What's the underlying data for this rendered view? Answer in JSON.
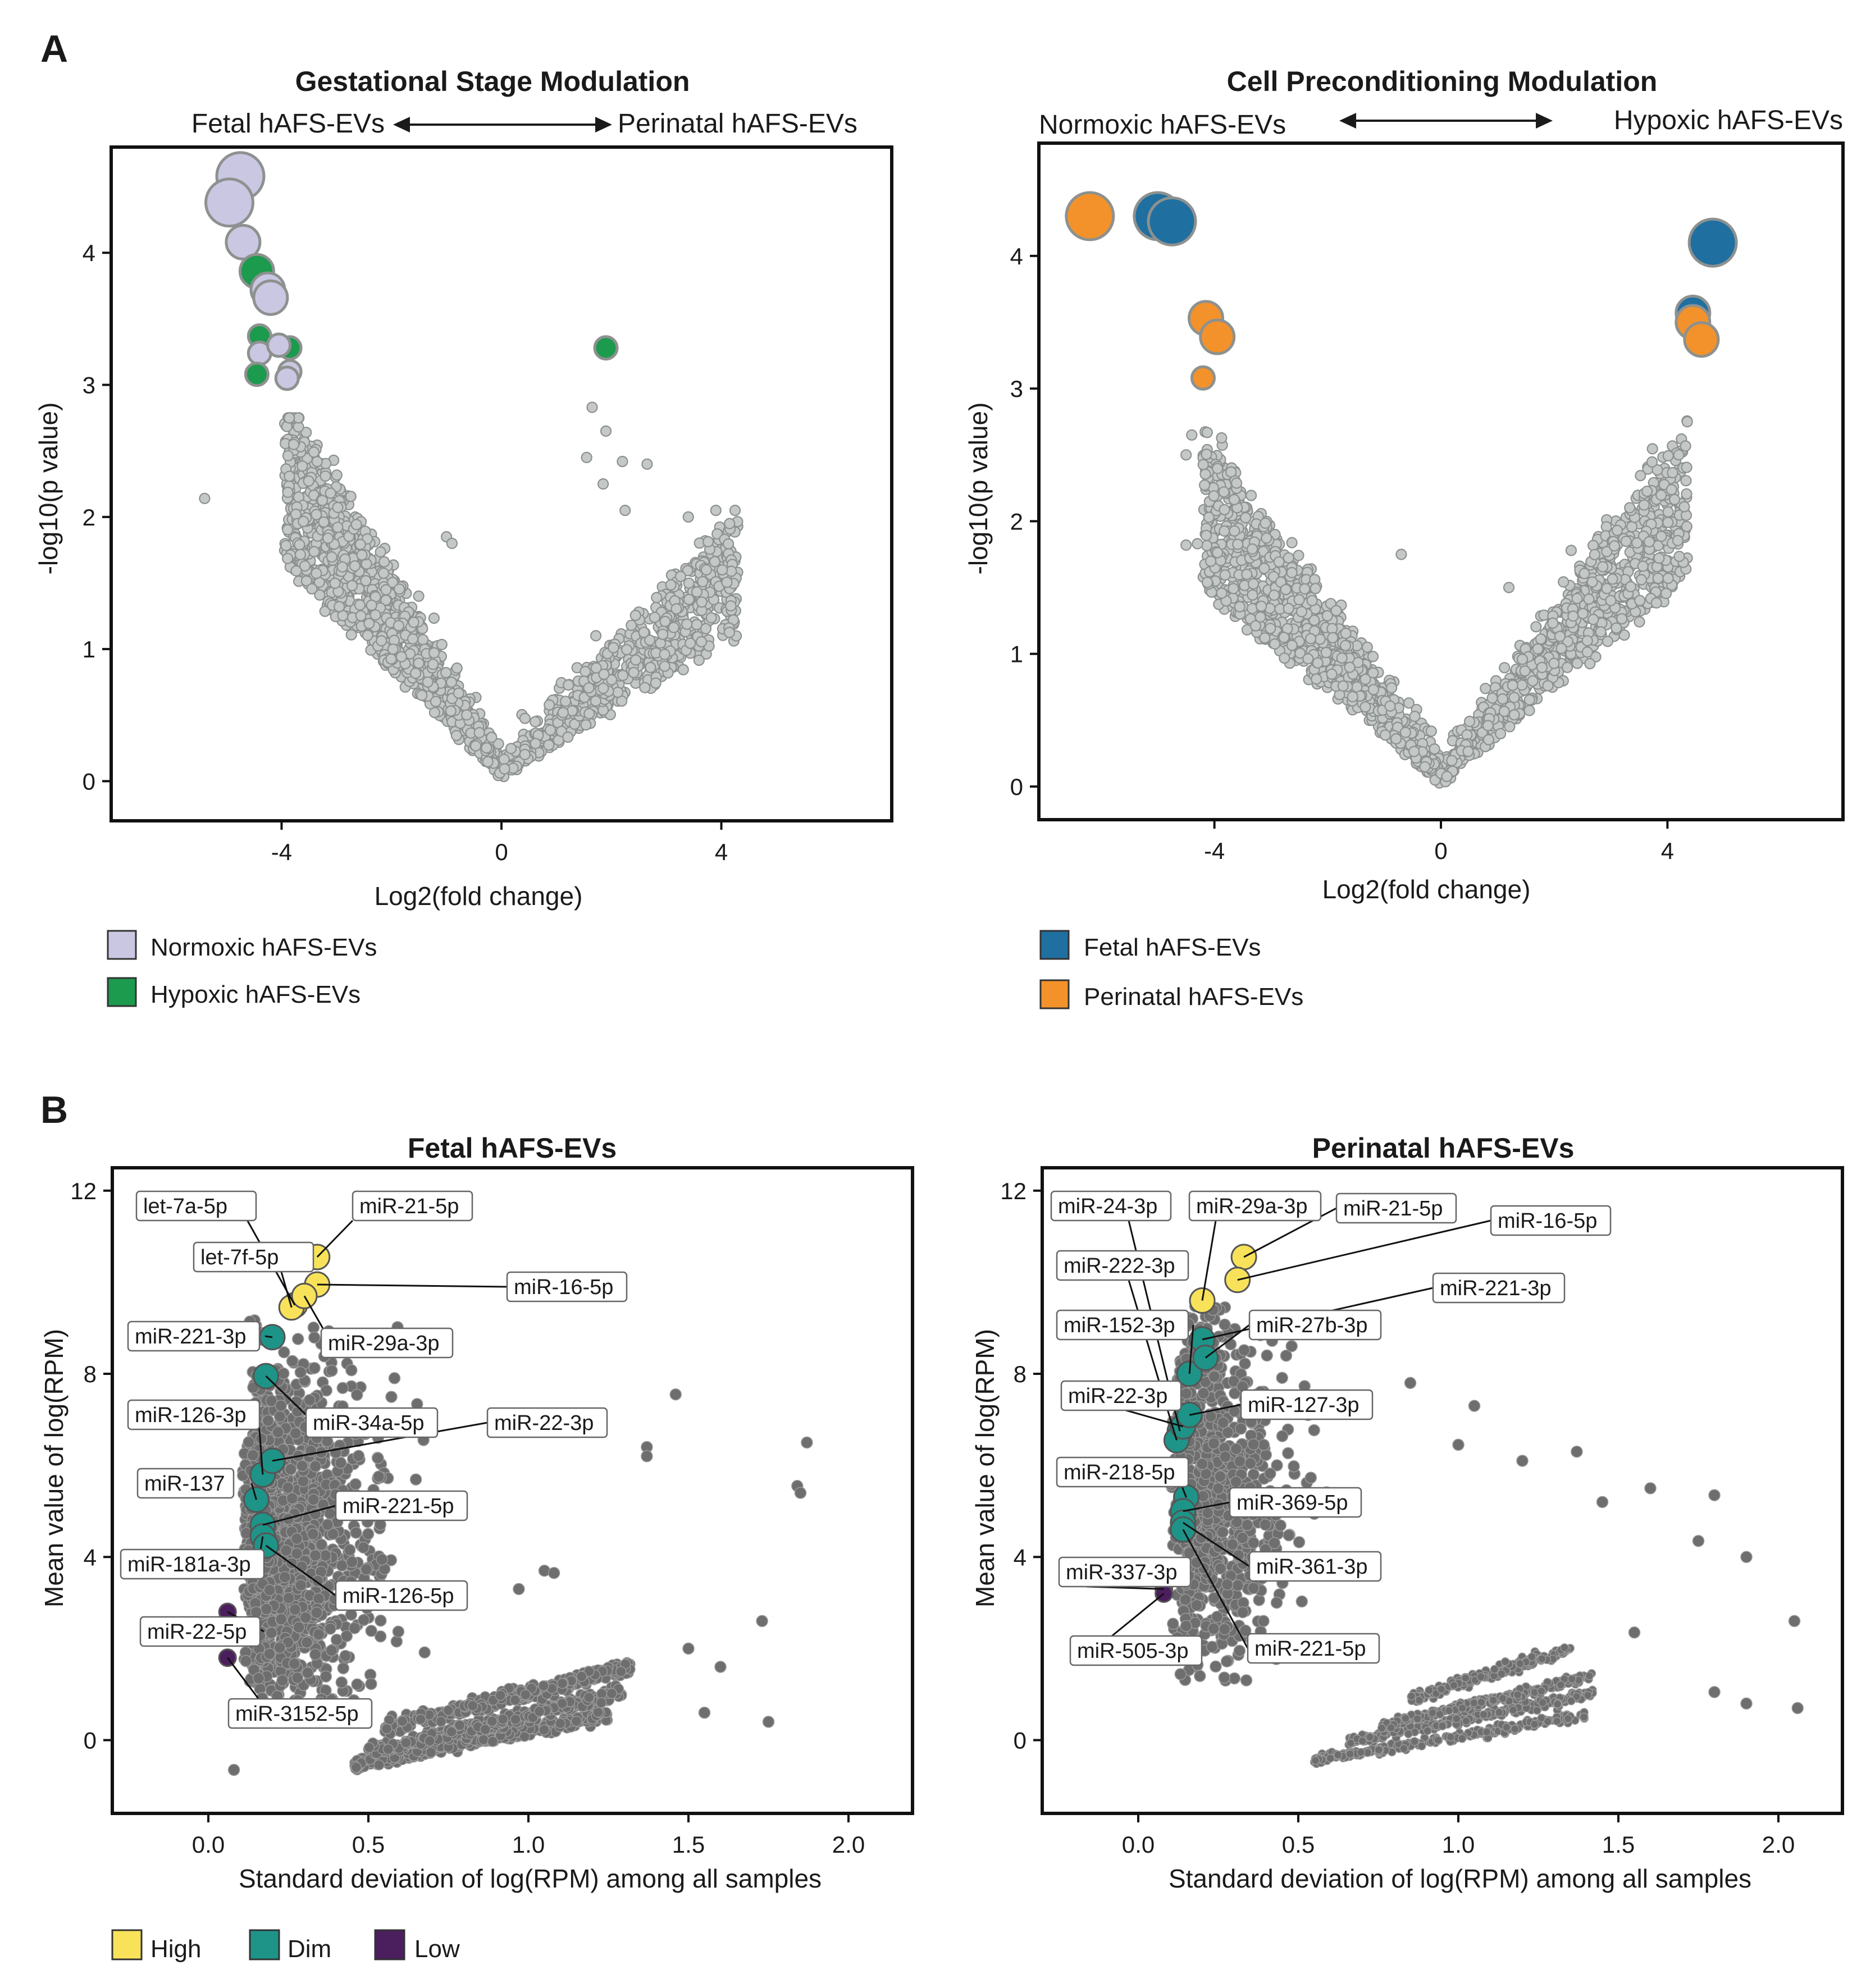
{
  "panel_letters": {
    "a": "A",
    "b": "B"
  },
  "colors": {
    "gray_bg": "#c4c8c6",
    "gray_stroke": "#8d918f",
    "gray_b": "#6e6e6e",
    "normoxic": "#c9c7e2",
    "hypoxic": "#1c9a4d",
    "fetal": "#1f6fa1",
    "perinatal": "#f3922b",
    "high": "#f8e25a",
    "dim": "#1e9488",
    "low": "#4b1e5e"
  },
  "legends": {
    "a1": [
      {
        "label": "Normoxic hAFS-EVs",
        "color": "#c9c7e2"
      },
      {
        "label": "Hypoxic hAFS-EVs",
        "color": "#1c9a4d"
      }
    ],
    "a2": [
      {
        "label": "Fetal hAFS-EVs",
        "color": "#1f6fa1"
      },
      {
        "label": "Perinatal hAFS-EVs",
        "color": "#f3922b"
      }
    ],
    "b": [
      {
        "label": "High",
        "color": "#f8e25a"
      },
      {
        "label": "Dim",
        "color": "#1e9488"
      },
      {
        "label": "Low",
        "color": "#4b1e5e"
      }
    ]
  },
  "chart_data": [
    {
      "id": "a1",
      "type": "scatter",
      "subtype": "volcano",
      "title": "Gestational Stage Modulation",
      "left_label": "Fetal hAFS-EVs",
      "right_label": "Perinatal hAFS-EVs",
      "xlabel": "Log2(fold change)",
      "ylabel": "-log10(p value)",
      "xlim": [
        -7.1,
        7.1
      ],
      "ylim": [
        -0.3,
        4.8
      ],
      "xticks": [
        -4,
        0,
        4
      ],
      "yticks": [
        0,
        1,
        2,
        3,
        4
      ],
      "background_points": {
        "color": "gray",
        "approx_count": 2000,
        "pattern": "volcano V-shape; left arm reaches p~2.8 at log2FC -3.9, right arm reaches p~2.1 at log2FC 4.3"
      },
      "highlighted": [
        {
          "x": -4.75,
          "y": 4.58,
          "group": "Normoxic hAFS-EVs",
          "size": "large"
        },
        {
          "x": -4.95,
          "y": 4.38,
          "group": "Normoxic hAFS-EVs",
          "size": "large"
        },
        {
          "x": -4.7,
          "y": 4.08,
          "group": "Normoxic hAFS-EVs",
          "size": "medium"
        },
        {
          "x": -4.45,
          "y": 3.86,
          "group": "Hypoxic hAFS-EVs",
          "size": "medium"
        },
        {
          "x": -4.25,
          "y": 3.72,
          "group": "Normoxic hAFS-EVs",
          "size": "medium"
        },
        {
          "x": -4.2,
          "y": 3.66,
          "group": "Normoxic hAFS-EVs",
          "size": "medium"
        },
        {
          "x": -4.4,
          "y": 3.37,
          "group": "Hypoxic hAFS-EVs",
          "size": "small"
        },
        {
          "x": -3.85,
          "y": 3.28,
          "group": "Hypoxic hAFS-EVs",
          "size": "small"
        },
        {
          "x": -4.4,
          "y": 3.24,
          "group": "Normoxic hAFS-EVs",
          "size": "small"
        },
        {
          "x": -4.05,
          "y": 3.3,
          "group": "Normoxic hAFS-EVs",
          "size": "small"
        },
        {
          "x": -4.45,
          "y": 3.08,
          "group": "Hypoxic hAFS-EVs",
          "size": "small"
        },
        {
          "x": -3.85,
          "y": 3.1,
          "group": "Normoxic hAFS-EVs",
          "size": "small"
        },
        {
          "x": -3.9,
          "y": 3.05,
          "group": "Normoxic hAFS-EVs",
          "size": "small"
        },
        {
          "x": 1.9,
          "y": 3.28,
          "group": "Hypoxic hAFS-EVs",
          "size": "small"
        }
      ]
    },
    {
      "id": "a2",
      "type": "scatter",
      "subtype": "volcano",
      "title": "Cell Preconditioning Modulation",
      "left_label": "Normoxic hAFS-EVs",
      "right_label": "Hypoxic hAFS-EVs",
      "xlabel": "Log2(fold change)",
      "ylabel": "-log10(p value)",
      "xlim": [
        -7.1,
        7.1
      ],
      "ylim": [
        -0.25,
        4.85
      ],
      "xticks": [
        -4,
        0,
        4
      ],
      "yticks": [
        0,
        1,
        2,
        3,
        4
      ],
      "background_points": {
        "color": "gray",
        "approx_count": 2000,
        "pattern": "volcano V-shape; left arm reaches p~2.8 at log2FC -4.2, right arm reaches p~2.9 at log2FC 4.3"
      },
      "highlighted": [
        {
          "x": -6.2,
          "y": 4.3,
          "group": "Perinatal hAFS-EVs",
          "size": "large"
        },
        {
          "x": -5.0,
          "y": 4.3,
          "group": "Fetal hAFS-EVs",
          "size": "large"
        },
        {
          "x": -4.75,
          "y": 4.26,
          "group": "Fetal hAFS-EVs",
          "size": "large"
        },
        {
          "x": -4.15,
          "y": 3.53,
          "group": "Perinatal hAFS-EVs",
          "size": "medium"
        },
        {
          "x": -3.95,
          "y": 3.39,
          "group": "Perinatal hAFS-EVs",
          "size": "medium"
        },
        {
          "x": -4.2,
          "y": 3.08,
          "group": "Perinatal hAFS-EVs",
          "size": "small"
        },
        {
          "x": 4.8,
          "y": 4.1,
          "group": "Fetal hAFS-EVs",
          "size": "large"
        },
        {
          "x": 4.45,
          "y": 3.57,
          "group": "Fetal hAFS-EVs",
          "size": "medium"
        },
        {
          "x": 4.45,
          "y": 3.5,
          "group": "Perinatal hAFS-EVs",
          "size": "medium"
        },
        {
          "x": 4.6,
          "y": 3.37,
          "group": "Perinatal hAFS-EVs",
          "size": "medium"
        }
      ]
    },
    {
      "id": "b1",
      "type": "scatter",
      "title": "Fetal hAFS-EVs",
      "xlabel": "Standard deviation of log(RPM) among all samples",
      "ylabel": "Mean value of log(RPM)",
      "xlim": [
        -0.3,
        2.2
      ],
      "ylim": [
        -1.6,
        12.5
      ],
      "xticks": [
        "0.0",
        "0.5",
        "1.0",
        "1.5",
        "2.0"
      ],
      "yticks": [
        0,
        4,
        8,
        12
      ],
      "background_points": {
        "color": "gray",
        "pattern": "dense cloud at SD 0.1-0.6, mean 1-9; three diagonal bands from (0.45, -0.5) to (1.3, 1.6); scattered outliers up to SD 1.87"
      },
      "labeled_points": [
        {
          "label": "let-7a-5p",
          "x": 0.27,
          "y": 9.5,
          "class": "High"
        },
        {
          "label": "let-7f-5p",
          "x": 0.26,
          "y": 9.45,
          "class": "High"
        },
        {
          "label": "miR-21-5p",
          "x": 0.34,
          "y": 10.55,
          "class": "High"
        },
        {
          "label": "miR-16-5p",
          "x": 0.34,
          "y": 9.95,
          "class": "High"
        },
        {
          "label": "miR-29a-3p",
          "x": 0.3,
          "y": 9.7,
          "class": "High"
        },
        {
          "label": "miR-221-3p",
          "x": 0.2,
          "y": 8.8,
          "class": "Dim"
        },
        {
          "label": "miR-34a-5p",
          "x": 0.18,
          "y": 7.95,
          "class": "Dim"
        },
        {
          "label": "miR-126-3p",
          "x": 0.17,
          "y": 5.8,
          "class": "Dim"
        },
        {
          "label": "miR-22-3p",
          "x": 0.2,
          "y": 6.1,
          "class": "Dim"
        },
        {
          "label": "miR-137",
          "x": 0.15,
          "y": 5.25,
          "class": "Dim"
        },
        {
          "label": "miR-221-5p",
          "x": 0.17,
          "y": 4.7,
          "class": "Dim"
        },
        {
          "label": "miR-181a-3p",
          "x": 0.17,
          "y": 4.45,
          "class": "Dim"
        },
        {
          "label": "miR-126-5p",
          "x": 0.18,
          "y": 4.25,
          "class": "Dim"
        },
        {
          "label": "miR-22-5p",
          "x": 0.06,
          "y": 2.8,
          "class": "Low"
        },
        {
          "label": "miR-3152-5p",
          "x": 0.06,
          "y": 1.8,
          "class": "Low"
        }
      ]
    },
    {
      "id": "b2",
      "type": "scatter",
      "title": "Perinatal hAFS-EVs",
      "xlabel": "Standard deviation of log(RPM) among all samples",
      "ylabel": "Mean value of log(RPM)",
      "xlim": [
        -0.3,
        2.2
      ],
      "ylim": [
        -1.6,
        12.5
      ],
      "xticks": [
        "0.0",
        "0.5",
        "1.0",
        "1.5",
        "2.0"
      ],
      "yticks": [
        0,
        4,
        8,
        12
      ],
      "background_points": {
        "color": "gray",
        "pattern": "dense cloud at SD 0.1-0.55, mean 1.5-9.5; four diagonal bands from (0.55, -0.4) to (1.4, 2.0); scattered outliers up to SD 2.05"
      },
      "labeled_points": [
        {
          "label": "miR-24-3p",
          "x": 0.13,
          "y": 6.75,
          "class": "Dim"
        },
        {
          "label": "miR-29a-3p",
          "x": 0.2,
          "y": 9.6,
          "class": "High"
        },
        {
          "label": "miR-21-5p",
          "x": 0.33,
          "y": 10.55,
          "class": "High"
        },
        {
          "label": "miR-16-5p",
          "x": 0.31,
          "y": 10.05,
          "class": "High"
        },
        {
          "label": "miR-222-3p",
          "x": 0.12,
          "y": 6.55,
          "class": "Dim"
        },
        {
          "label": "miR-221-3p",
          "x": 0.2,
          "y": 8.75,
          "class": "Dim"
        },
        {
          "label": "miR-152-3p",
          "x": 0.16,
          "y": 8.0,
          "class": "Dim"
        },
        {
          "label": "miR-27b-3p",
          "x": 0.21,
          "y": 8.35,
          "class": "Dim"
        },
        {
          "label": "miR-22-3p",
          "x": 0.14,
          "y": 6.85,
          "class": "Dim"
        },
        {
          "label": "miR-127-3p",
          "x": 0.16,
          "y": 7.1,
          "class": "Dim"
        },
        {
          "label": "miR-218-5p",
          "x": 0.15,
          "y": 5.3,
          "class": "Dim"
        },
        {
          "label": "miR-369-5p",
          "x": 0.14,
          "y": 5.0,
          "class": "Dim"
        },
        {
          "label": "miR-361-3p",
          "x": 0.14,
          "y": 4.75,
          "class": "Dim"
        },
        {
          "label": "miR-337-3p",
          "x": 0.08,
          "y": 3.3,
          "class": "Low"
        },
        {
          "label": "miR-505-3p",
          "x": 0.08,
          "y": 3.2,
          "class": "Low"
        },
        {
          "label": "miR-221-5p",
          "x": 0.14,
          "y": 4.6,
          "class": "Dim"
        }
      ]
    }
  ]
}
